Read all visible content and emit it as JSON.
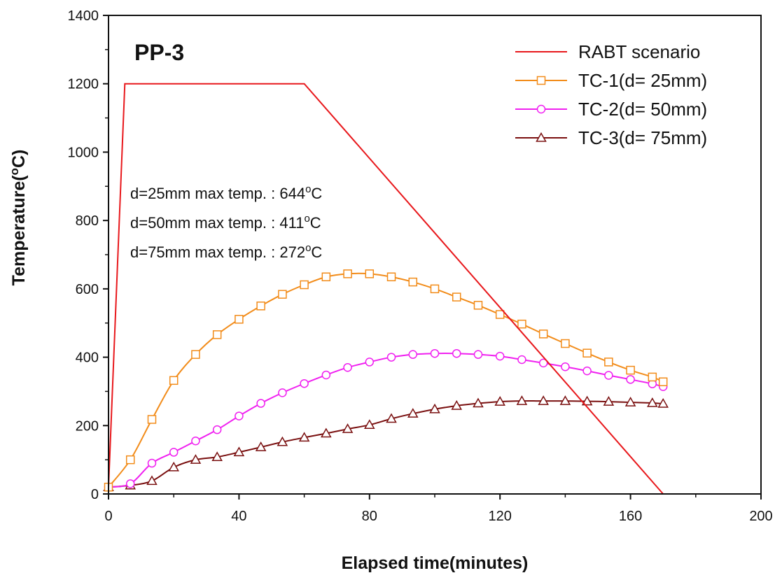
{
  "chart_data": {
    "type": "line",
    "title": "PP-3",
    "xlabel": "Elapsed time(minutes)",
    "ylabel": "Temperature(°C)",
    "xlim": [
      0,
      200
    ],
    "ylim": [
      0,
      1400
    ],
    "xticks": [
      0,
      40,
      80,
      120,
      160,
      200
    ],
    "yticks": [
      0,
      200,
      400,
      600,
      800,
      1000,
      1200,
      1400
    ],
    "grid": false,
    "legend_position": "top-right",
    "series": [
      {
        "name": "RABT scenario",
        "color": "#e8181c",
        "marker": "none",
        "x": [
          0,
          5,
          60,
          170
        ],
        "y": [
          20,
          1200,
          1200,
          0
        ]
      },
      {
        "name": "TC-1(d= 25mm)",
        "color": "#f28c1a",
        "marker": "square",
        "x": [
          0,
          6.7,
          13.3,
          20,
          26.7,
          33.3,
          40,
          46.7,
          53.3,
          60,
          66.7,
          73.3,
          80,
          86.7,
          93.3,
          100,
          106.7,
          113.3,
          120,
          126.7,
          133.3,
          140,
          146.7,
          153.3,
          160,
          166.7,
          170
        ],
        "y": [
          20,
          100,
          218,
          332,
          408,
          466,
          511,
          550,
          584,
          612,
          635,
          644,
          644,
          635,
          620,
          600,
          576,
          552,
          525,
          497,
          468,
          440,
          412,
          386,
          362,
          342,
          328
        ]
      },
      {
        "name": "TC-2(d= 50mm)",
        "color": "#f020f0",
        "marker": "circle",
        "x": [
          0,
          6.7,
          13.3,
          20,
          26.7,
          33.3,
          40,
          46.7,
          53.3,
          60,
          66.7,
          73.3,
          80,
          86.7,
          93.3,
          100,
          106.7,
          113.3,
          120,
          126.7,
          133.3,
          140,
          146.7,
          153.3,
          160,
          166.7,
          170
        ],
        "y": [
          20,
          30,
          90,
          122,
          155,
          188,
          228,
          265,
          296,
          323,
          348,
          370,
          386,
          400,
          408,
          411,
          411,
          408,
          403,
          393,
          383,
          372,
          360,
          347,
          335,
          322,
          314
        ]
      },
      {
        "name": "TC-3(d= 75mm)",
        "color": "#7a1010",
        "marker": "triangle",
        "x": [
          0,
          6.7,
          13.3,
          20,
          26.7,
          33.3,
          40,
          46.7,
          53.3,
          60,
          66.7,
          73.3,
          80,
          86.7,
          93.3,
          100,
          106.7,
          113.3,
          120,
          126.7,
          133.3,
          140,
          146.7,
          153.3,
          160,
          166.7,
          170
        ],
        "y": [
          20,
          25,
          38,
          78,
          100,
          108,
          122,
          137,
          152,
          165,
          177,
          190,
          202,
          220,
          235,
          248,
          258,
          265,
          270,
          272,
          272,
          272,
          271,
          270,
          268,
          266,
          264
        ]
      }
    ],
    "annotations": [
      {
        "text": "d=25mm max temp. : 644",
        "sup": "o",
        "unit": "C"
      },
      {
        "text": "d=50mm max temp. : 411",
        "sup": "o",
        "unit": "C"
      },
      {
        "text": "d=75mm max temp. : 272",
        "sup": "o",
        "unit": "C"
      }
    ]
  }
}
